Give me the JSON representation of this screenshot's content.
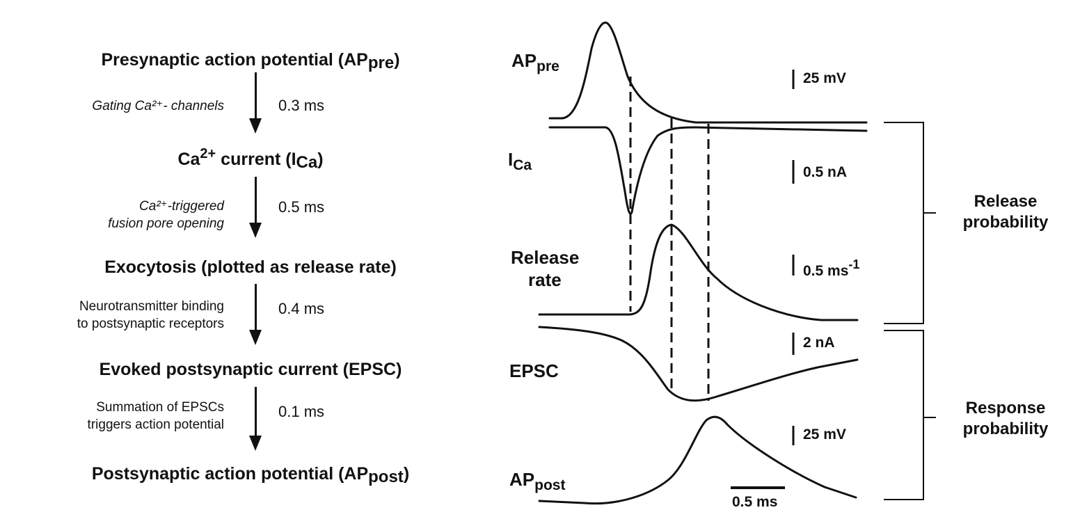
{
  "left_flow": {
    "stages": [
      {
        "text": "Presynaptic action potential (AP",
        "sub": "pre",
        "tail": ")"
      },
      {
        "pre": "Ca",
        "sup": "2+",
        "text": " current (I",
        "sub": "Ca",
        "tail": ")"
      },
      {
        "text": "Exocytosis (plotted as  release rate)"
      },
      {
        "text": "Evoked postsynaptic current (EPSC)"
      },
      {
        "text": "Postsynaptic action potential (AP",
        "sub": "post",
        "tail": ")"
      }
    ],
    "steps": [
      {
        "line1": "Gating Ca²⁺- channels",
        "line2": "",
        "duration": "0.3 ms"
      },
      {
        "line1": "Ca²⁺-triggered",
        "line2": "fusion pore opening",
        "duration": "0.5 ms"
      },
      {
        "line1": "Neurotransmitter binding",
        "line2": "to postsynaptic  receptors",
        "duration": "0.4 ms"
      },
      {
        "line1": "Summation of EPSCs",
        "line2": "triggers action potential",
        "duration": "0.1 ms"
      }
    ]
  },
  "traces": {
    "labels": {
      "ap_pre": {
        "main": "AP",
        "sub": "pre"
      },
      "ica": {
        "main": "I",
        "sub": "Ca"
      },
      "release_line1": "Release",
      "release_line2": "rate",
      "epsc": "EPSC",
      "ap_post": {
        "main": "AP",
        "sub": "post"
      }
    },
    "scale_bars": {
      "ap_pre": "25 mV",
      "ica": "0.5 nA",
      "release": "0.5 ms",
      "release_sup": "-1",
      "epsc": "2 nA",
      "ap_post": "25 mV",
      "time": "0.5 ms"
    },
    "brackets": {
      "release_line1": "Release",
      "release_line2": "probability",
      "response_line1": "Response",
      "response_line2": "probability"
    },
    "colors": {
      "ink": "#111111"
    }
  }
}
